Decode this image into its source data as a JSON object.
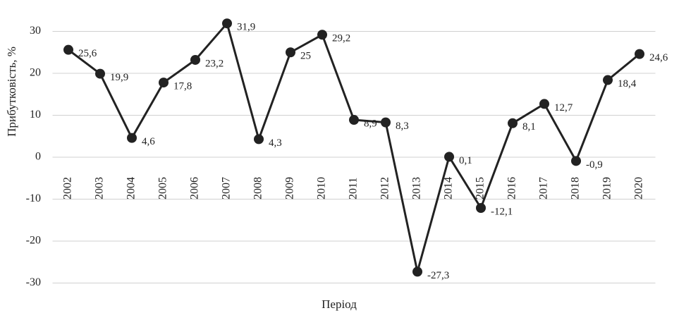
{
  "chart_data": {
    "type": "line",
    "x_label": "Період",
    "y_label": "Прибутковість, %",
    "categories": [
      "2002",
      "2003",
      "2004",
      "2005",
      "2006",
      "2007",
      "2008",
      "2009",
      "2010",
      "2011",
      "2012",
      "2013",
      "2014",
      "2015",
      "2016",
      "2017",
      "2018",
      "2019",
      "2020"
    ],
    "values": [
      25.6,
      19.9,
      4.6,
      17.8,
      23.2,
      31.9,
      4.3,
      25,
      29.2,
      8.9,
      8.3,
      -27.3,
      0.1,
      -12.1,
      8.1,
      12.7,
      -0.9,
      18.4,
      24.6
    ],
    "value_labels": [
      "25,6",
      "19,9",
      "4,6",
      "17,8",
      "23,2",
      "31,9",
      "4,3",
      "25",
      "29,2",
      "8,9",
      "8,3",
      "-27,3",
      "0,1",
      "-12,1",
      "8,1",
      "12,7",
      "-0,9",
      "18,4",
      "24,6"
    ],
    "color": "#222222",
    "ylim": [
      -30,
      35
    ],
    "yticks": [
      -30,
      -20,
      -10,
      0,
      10,
      20,
      30
    ],
    "grid": true
  }
}
